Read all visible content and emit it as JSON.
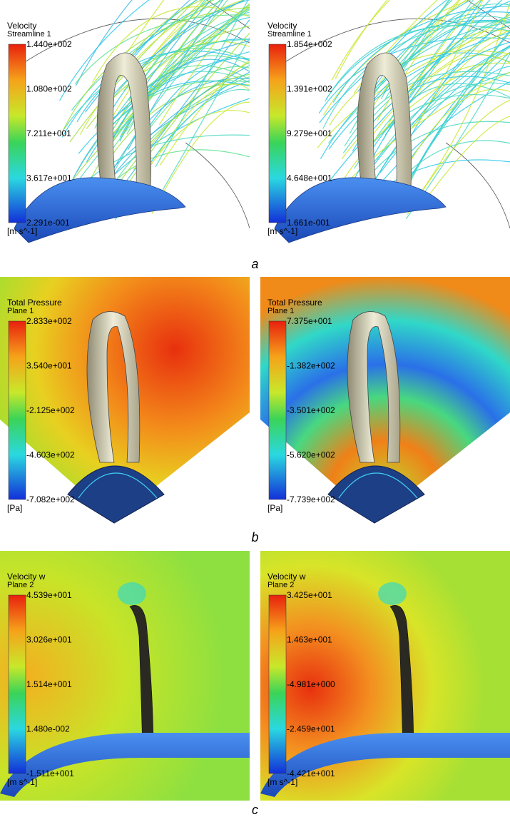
{
  "rows": [
    {
      "label": "a",
      "panels": [
        {
          "title": "Velocity",
          "subtitle": "Streamline 1",
          "ticks": [
            "1.440e+002",
            "1.080e+002",
            "7.211e+001",
            "3.617e+001",
            "2.291e-001"
          ],
          "unit": "[m s^-1]"
        },
        {
          "title": "Velocity",
          "subtitle": "Streamline 1",
          "ticks": [
            "1.854e+002",
            "1.391e+002",
            "9.279e+001",
            "4.648e+001",
            "1.661e-001"
          ],
          "unit": "[m s^-1]"
        }
      ]
    },
    {
      "label": "b",
      "panels": [
        {
          "title": "Total Pressure",
          "subtitle": "Plane 1",
          "ticks": [
            "2.833e+002",
            "3.540e+001",
            "-2.125e+002",
            "-4.603e+002",
            "-7.082e+002"
          ],
          "unit": "[Pa]"
        },
        {
          "title": "Total Pressure",
          "subtitle": "Plane 1",
          "ticks": [
            "7.375e+001",
            "-1.382e+002",
            "-3.501e+002",
            "-5.620e+002",
            "-7.739e+002"
          ],
          "unit": "[Pa]"
        }
      ]
    },
    {
      "label": "c",
      "panels": [
        {
          "title": "Velocity w",
          "subtitle": "Plane 2",
          "ticks": [
            "4.539e+001",
            "3.026e+001",
            "1.514e+001",
            "1.480e-002",
            "-1.511e+001"
          ],
          "unit": "[m s^-1]"
        },
        {
          "title": "Velocity w",
          "subtitle": "Plane 2",
          "ticks": [
            "3.425e+001",
            "1.463e+001",
            "-4.981e+000",
            "-2.459e+001",
            "-4.421e+001"
          ],
          "unit": "[m s^-1]"
        }
      ]
    }
  ]
}
